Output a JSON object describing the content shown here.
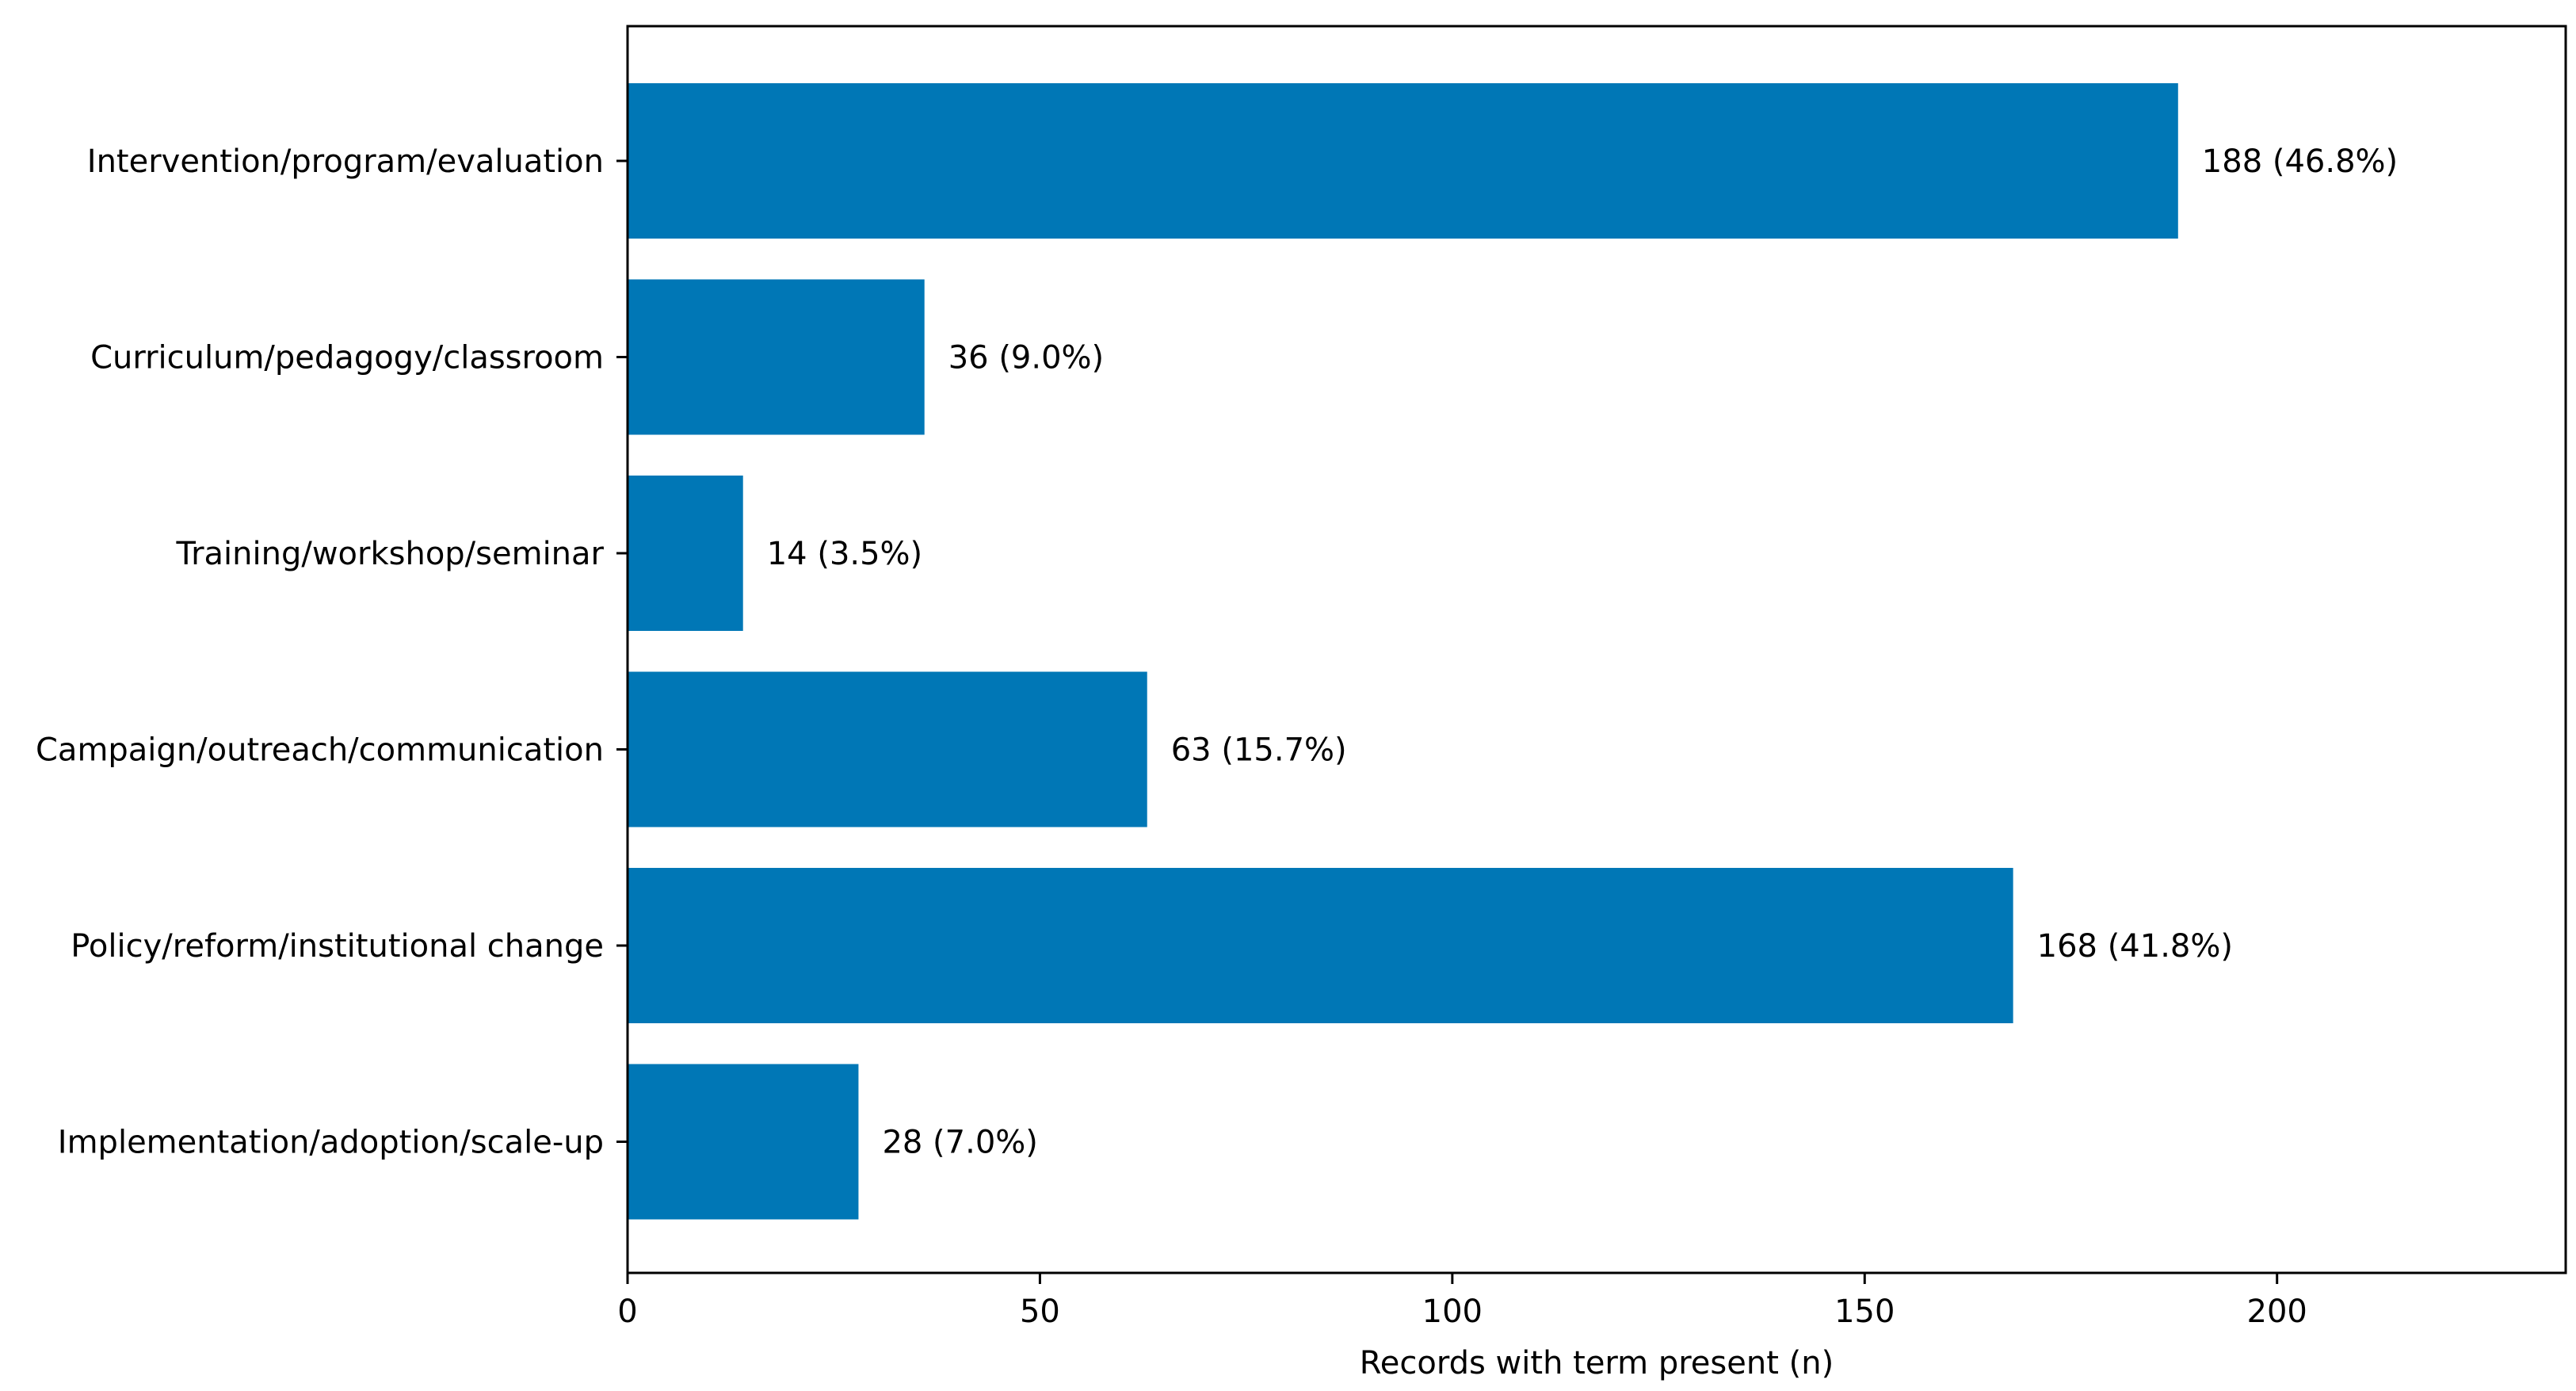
{
  "chart_data": {
    "type": "bar",
    "orientation": "horizontal",
    "categories": [
      "Intervention/program/evaluation",
      "Curriculum/pedagogy/classroom",
      "Training/workshop/seminar",
      "Campaign/outreach/communication",
      "Policy/reform/institutional change",
      "Implementation/adoption/scale-up"
    ],
    "values": [
      188,
      36,
      14,
      63,
      168,
      28
    ],
    "value_labels": [
      "188 (46.8%)",
      "36 (9.0%)",
      "14 (3.5%)",
      "63 (15.7%)",
      "168 (41.8%)",
      "28 (7.0%)"
    ],
    "xlabel": "Records with term present (n)",
    "ylabel": "",
    "title": "",
    "xlim": [
      0,
      235
    ],
    "xticks": [
      0,
      50,
      100,
      150,
      200
    ],
    "xtick_labels": [
      "0",
      "50",
      "100",
      "150",
      "200"
    ],
    "grid": false,
    "bar_color": "#0077b6"
  }
}
